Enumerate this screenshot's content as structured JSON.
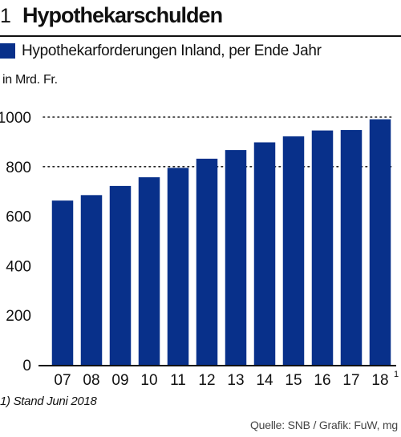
{
  "header": {
    "number": "1",
    "title": "Hypothekarschulden"
  },
  "legend": {
    "label": "Hypothekarforderungen Inland, per Ende Jahr",
    "color": "#08308a"
  },
  "unit": "in Mrd. Fr.",
  "footnote": "1) Stand Juni 2018",
  "source": "Quelle: SNB / Grafik: FuW, mg",
  "chart_data": {
    "type": "bar",
    "title": "Hypothekarschulden",
    "categories": [
      "07",
      "08",
      "09",
      "10",
      "11",
      "12",
      "13",
      "14",
      "15",
      "16",
      "17",
      "18"
    ],
    "category_superscripts": [
      "",
      "",
      "",
      "",
      "",
      "",
      "",
      "",
      "",
      "",
      "",
      "1"
    ],
    "series": [
      {
        "name": "Hypothekarforderungen Inland, per Ende Jahr",
        "values": [
          663,
          685,
          722,
          757,
          795,
          832,
          867,
          898,
          922,
          946,
          948,
          991
        ],
        "color": "#08308a"
      }
    ],
    "ylabel": "in Mrd. Fr.",
    "ylim": [
      0,
      1000
    ],
    "yticks": [
      0,
      200,
      400,
      600,
      800,
      1000
    ],
    "grid": "dotted horizontal at 800 and 1000",
    "legend_position": "top-left"
  }
}
